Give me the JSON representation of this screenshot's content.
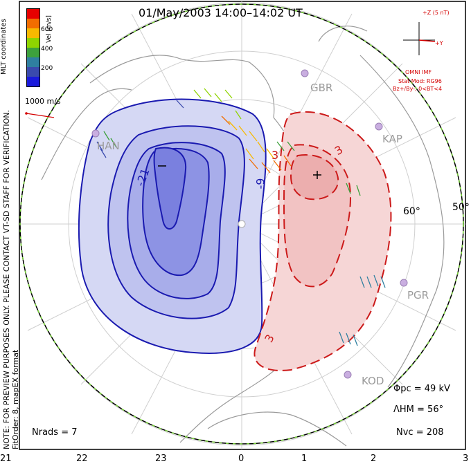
{
  "title": "01/May/2003 14:00–14:02 UT",
  "colorbar": {
    "ticks": [
      "600",
      "400",
      "200"
    ],
    "label": "Vel [m/s]",
    "colors": [
      "#e60000",
      "#f26d00",
      "#f7b900",
      "#8fd400",
      "#3da13d",
      "#2f7fa0",
      "#3a4aad",
      "#1a1adc"
    ]
  },
  "side_labels": {
    "mlt": "MLT coordinates",
    "note": "NOTE: FOR PREVIEW PURPOSES ONLY. PLEASE CONTACT VT-SD STAFF FOR VERIFICATION.",
    "fit": "FitOrder: 8, mapEX format"
  },
  "scale_vector": "1000 m/s",
  "imf": {
    "header": "+Z (5 nT)",
    "y_label": "+Y",
    "source": "OMNI IMF",
    "stat_mod": "Stat Mod: RG96",
    "condition": "Bz+/By-, 0<BT<4"
  },
  "stations": [
    "GBR",
    "KAP",
    "PGR",
    "KOD",
    "HAN"
  ],
  "latitude_labels": [
    "60°",
    "50°"
  ],
  "contour_labels": [
    "-21",
    "-9",
    "3",
    "3",
    "3"
  ],
  "stats": {
    "phi_pc": "Φpc = 49 kV",
    "lambda_hm": "ΛHM = 56°",
    "n_vc": "Nvc = 208",
    "n_rads": "Nrads = 7"
  },
  "mlt_ticks": [
    "21",
    "22",
    "23",
    "0",
    "1",
    "2",
    "3"
  ],
  "polarity_markers": {
    "negative": "–",
    "positive": "+"
  }
}
